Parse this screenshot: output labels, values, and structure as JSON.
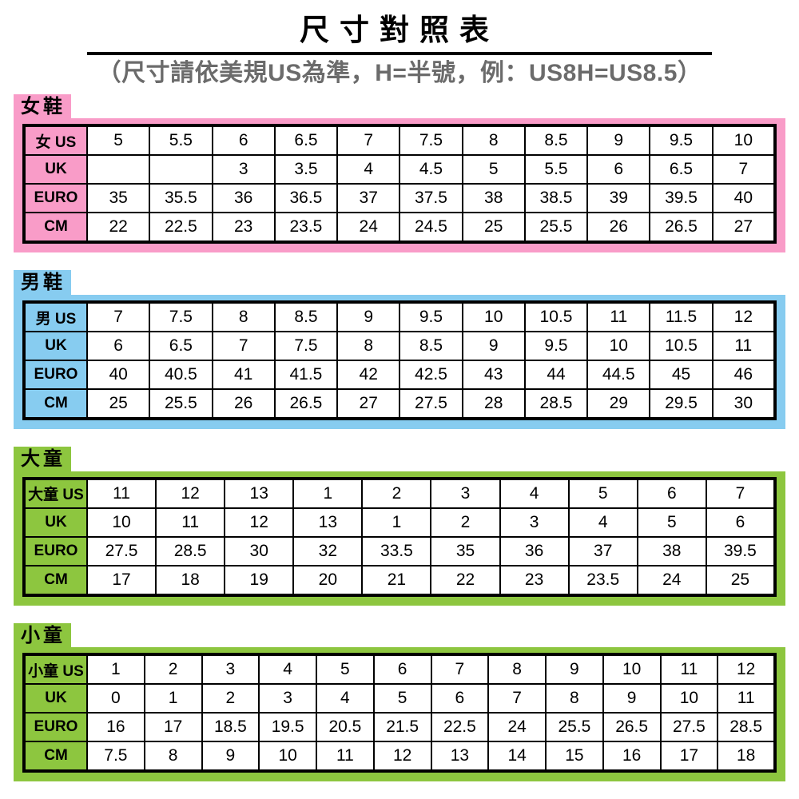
{
  "header": {
    "title": "尺寸對照表",
    "subtitle": "（尺寸請依美規US為準，H=半號，例：US8H=US8.5）"
  },
  "colors": {
    "women_pink": "#f99cc8",
    "men_blue": "#87ccf0",
    "kids_green": "#8dc63f",
    "border_black": "#000000",
    "subtitle_gray": "#6b6b6b"
  },
  "chart_data": [
    {
      "type": "table",
      "title": "女鞋",
      "color": "#f99cc8",
      "rows": [
        {
          "label": "女 US",
          "values": [
            "5",
            "5.5",
            "6",
            "6.5",
            "7",
            "7.5",
            "8",
            "8.5",
            "9",
            "9.5",
            "10"
          ]
        },
        {
          "label": "UK",
          "values": [
            "",
            "",
            "3",
            "3.5",
            "4",
            "4.5",
            "5",
            "5.5",
            "6",
            "6.5",
            "7"
          ]
        },
        {
          "label": "EURO",
          "values": [
            "35",
            "35.5",
            "36",
            "36.5",
            "37",
            "37.5",
            "38",
            "38.5",
            "39",
            "39.5",
            "40"
          ]
        },
        {
          "label": "CM",
          "values": [
            "22",
            "22.5",
            "23",
            "23.5",
            "24",
            "24.5",
            "25",
            "25.5",
            "26",
            "26.5",
            "27"
          ]
        }
      ]
    },
    {
      "type": "table",
      "title": "男鞋",
      "color": "#87ccf0",
      "rows": [
        {
          "label": "男 US",
          "values": [
            "7",
            "7.5",
            "8",
            "8.5",
            "9",
            "9.5",
            "10",
            "10.5",
            "11",
            "11.5",
            "12"
          ]
        },
        {
          "label": "UK",
          "values": [
            "6",
            "6.5",
            "7",
            "7.5",
            "8",
            "8.5",
            "9",
            "9.5",
            "10",
            "10.5",
            "11"
          ]
        },
        {
          "label": "EURO",
          "values": [
            "40",
            "40.5",
            "41",
            "41.5",
            "42",
            "42.5",
            "43",
            "44",
            "44.5",
            "45",
            "46"
          ]
        },
        {
          "label": "CM",
          "values": [
            "25",
            "25.5",
            "26",
            "26.5",
            "27",
            "27.5",
            "28",
            "28.5",
            "29",
            "29.5",
            "30"
          ]
        }
      ]
    },
    {
      "type": "table",
      "title": "大童",
      "color": "#8dc63f",
      "rows": [
        {
          "label": "大童 US",
          "values": [
            "11",
            "12",
            "13",
            "1",
            "2",
            "3",
            "4",
            "5",
            "6",
            "7"
          ]
        },
        {
          "label": "UK",
          "values": [
            "10",
            "11",
            "12",
            "13",
            "1",
            "2",
            "3",
            "4",
            "5",
            "6"
          ]
        },
        {
          "label": "EURO",
          "values": [
            "27.5",
            "28.5",
            "30",
            "32",
            "33.5",
            "35",
            "36",
            "37",
            "38",
            "39.5"
          ]
        },
        {
          "label": "CM",
          "values": [
            "17",
            "18",
            "19",
            "20",
            "21",
            "22",
            "23",
            "23.5",
            "24",
            "25"
          ]
        }
      ]
    },
    {
      "type": "table",
      "title": "小童",
      "color": "#8dc63f",
      "rows": [
        {
          "label": "小童 US",
          "values": [
            "1",
            "2",
            "3",
            "4",
            "5",
            "6",
            "7",
            "8",
            "9",
            "10",
            "11",
            "12"
          ]
        },
        {
          "label": "UK",
          "values": [
            "0",
            "1",
            "2",
            "3",
            "4",
            "5",
            "6",
            "7",
            "8",
            "9",
            "10",
            "11"
          ]
        },
        {
          "label": "EURO",
          "values": [
            "16",
            "17",
            "18.5",
            "19.5",
            "20.5",
            "21.5",
            "22.5",
            "24",
            "25.5",
            "26.5",
            "27.5",
            "28.5"
          ]
        },
        {
          "label": "CM",
          "values": [
            "7.5",
            "8",
            "9",
            "10",
            "11",
            "12",
            "13",
            "14",
            "15",
            "16",
            "17",
            "18"
          ]
        }
      ]
    }
  ]
}
